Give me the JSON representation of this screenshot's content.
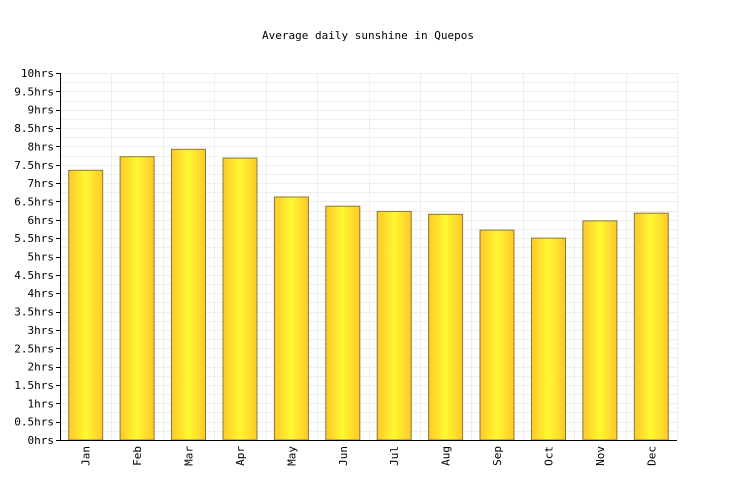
{
  "chart_data": {
    "type": "bar",
    "title": "Average daily sunshine in Quepos",
    "categories": [
      "Jan",
      "Feb",
      "Mar",
      "Apr",
      "May",
      "Jun",
      "Jul",
      "Aug",
      "Sep",
      "Oct",
      "Nov",
      "Dec"
    ],
    "values": [
      7.35,
      7.72,
      7.92,
      7.68,
      6.62,
      6.37,
      6.23,
      6.15,
      5.72,
      5.5,
      5.97,
      6.18
    ],
    "ylim": [
      0,
      10
    ],
    "y_ticks": [
      "0hrs",
      "0.5hrs",
      "1hrs",
      "1.5hrs",
      "2hrs",
      "2.5hrs",
      "3hrs",
      "3.5hrs",
      "4hrs",
      "4.5hrs",
      "5hrs",
      "5.5hrs",
      "6hrs",
      "6.5hrs",
      "7hrs",
      "7.5hrs",
      "8hrs",
      "8.5hrs",
      "9hrs",
      "9.5hrs",
      "10hrs"
    ],
    "grid": true,
    "legend": "none",
    "colors": {
      "bar_light": "#fff830",
      "bar_dark": "#ffc82a",
      "bar_border": "#8a7a30",
      "grid": "#eeeeee",
      "axis": "#000000"
    }
  }
}
